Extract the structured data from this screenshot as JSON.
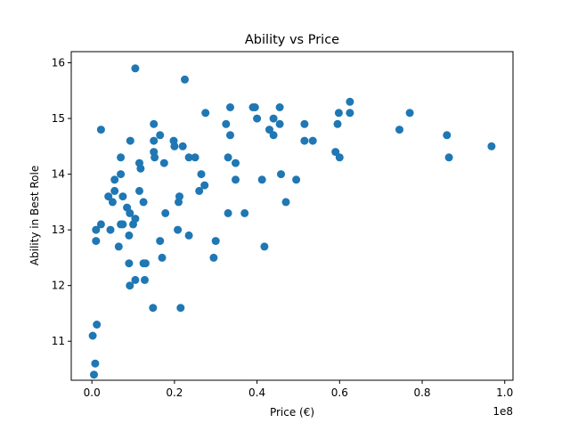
{
  "chart_data": {
    "type": "scatter",
    "title": "Ability vs Price",
    "xlabel": "Price (€)",
    "ylabel": "Ability in Best Role",
    "x_offset_label": "1e8",
    "xlim": [
      -0.05,
      1.02
    ],
    "ylim": [
      10.3,
      16.2
    ],
    "xticks": [
      0.0,
      0.2,
      0.4,
      0.6,
      0.8,
      1.0
    ],
    "xtick_labels": [
      "0.0",
      "0.2",
      "0.4",
      "0.6",
      "0.8",
      "1.0"
    ],
    "yticks": [
      11,
      12,
      13,
      14,
      15,
      16
    ],
    "ytick_labels": [
      "11",
      "12",
      "13",
      "14",
      "15",
      "16"
    ],
    "grid": false,
    "marker_color": "#1f77b4",
    "points": [
      {
        "x": 0.002,
        "y": 11.1
      },
      {
        "x": 0.008,
        "y": 10.6
      },
      {
        "x": 0.005,
        "y": 10.4
      },
      {
        "x": 0.012,
        "y": 11.3
      },
      {
        "x": 0.01,
        "y": 12.8
      },
      {
        "x": 0.01,
        "y": 13.0
      },
      {
        "x": 0.022,
        "y": 13.1
      },
      {
        "x": 0.022,
        "y": 14.8
      },
      {
        "x": 0.04,
        "y": 13.6
      },
      {
        "x": 0.045,
        "y": 13.0
      },
      {
        "x": 0.05,
        "y": 13.5
      },
      {
        "x": 0.055,
        "y": 13.7
      },
      {
        "x": 0.055,
        "y": 13.9
      },
      {
        "x": 0.065,
        "y": 12.7
      },
      {
        "x": 0.07,
        "y": 13.1
      },
      {
        "x": 0.07,
        "y": 14.0
      },
      {
        "x": 0.07,
        "y": 14.3
      },
      {
        "x": 0.075,
        "y": 13.6
      },
      {
        "x": 0.075,
        "y": 13.1
      },
      {
        "x": 0.085,
        "y": 13.4
      },
      {
        "x": 0.09,
        "y": 12.9
      },
      {
        "x": 0.09,
        "y": 12.4
      },
      {
        "x": 0.092,
        "y": 12.0
      },
      {
        "x": 0.092,
        "y": 13.3
      },
      {
        "x": 0.093,
        "y": 14.6
      },
      {
        "x": 0.1,
        "y": 13.1
      },
      {
        "x": 0.105,
        "y": 13.2
      },
      {
        "x": 0.105,
        "y": 12.1
      },
      {
        "x": 0.105,
        "y": 15.9
      },
      {
        "x": 0.115,
        "y": 13.7
      },
      {
        "x": 0.115,
        "y": 14.2
      },
      {
        "x": 0.118,
        "y": 14.1
      },
      {
        "x": 0.125,
        "y": 12.4
      },
      {
        "x": 0.125,
        "y": 13.5
      },
      {
        "x": 0.128,
        "y": 12.1
      },
      {
        "x": 0.13,
        "y": 12.4
      },
      {
        "x": 0.148,
        "y": 11.6
      },
      {
        "x": 0.15,
        "y": 14.4
      },
      {
        "x": 0.15,
        "y": 14.6
      },
      {
        "x": 0.15,
        "y": 14.9
      },
      {
        "x": 0.152,
        "y": 14.3
      },
      {
        "x": 0.165,
        "y": 12.8
      },
      {
        "x": 0.165,
        "y": 14.7
      },
      {
        "x": 0.17,
        "y": 12.5
      },
      {
        "x": 0.175,
        "y": 14.2
      },
      {
        "x": 0.178,
        "y": 13.3
      },
      {
        "x": 0.198,
        "y": 14.6
      },
      {
        "x": 0.2,
        "y": 14.5
      },
      {
        "x": 0.208,
        "y": 13.0
      },
      {
        "x": 0.21,
        "y": 13.5
      },
      {
        "x": 0.212,
        "y": 13.6
      },
      {
        "x": 0.215,
        "y": 11.6
      },
      {
        "x": 0.22,
        "y": 14.5
      },
      {
        "x": 0.225,
        "y": 15.7
      },
      {
        "x": 0.235,
        "y": 12.9
      },
      {
        "x": 0.235,
        "y": 14.3
      },
      {
        "x": 0.25,
        "y": 14.3
      },
      {
        "x": 0.26,
        "y": 13.7
      },
      {
        "x": 0.265,
        "y": 14.0
      },
      {
        "x": 0.273,
        "y": 13.8
      },
      {
        "x": 0.275,
        "y": 15.1
      },
      {
        "x": 0.295,
        "y": 12.5
      },
      {
        "x": 0.3,
        "y": 12.8
      },
      {
        "x": 0.325,
        "y": 14.9
      },
      {
        "x": 0.33,
        "y": 13.3
      },
      {
        "x": 0.33,
        "y": 14.3
      },
      {
        "x": 0.335,
        "y": 14.7
      },
      {
        "x": 0.335,
        "y": 15.2
      },
      {
        "x": 0.348,
        "y": 13.9
      },
      {
        "x": 0.348,
        "y": 14.2
      },
      {
        "x": 0.37,
        "y": 13.3
      },
      {
        "x": 0.39,
        "y": 15.2
      },
      {
        "x": 0.395,
        "y": 15.2
      },
      {
        "x": 0.4,
        "y": 15.0
      },
      {
        "x": 0.412,
        "y": 13.9
      },
      {
        "x": 0.418,
        "y": 12.7
      },
      {
        "x": 0.43,
        "y": 14.8
      },
      {
        "x": 0.44,
        "y": 14.7
      },
      {
        "x": 0.44,
        "y": 15.0
      },
      {
        "x": 0.455,
        "y": 14.9
      },
      {
        "x": 0.455,
        "y": 15.2
      },
      {
        "x": 0.458,
        "y": 14.0
      },
      {
        "x": 0.47,
        "y": 13.5
      },
      {
        "x": 0.495,
        "y": 13.9
      },
      {
        "x": 0.515,
        "y": 14.6
      },
      {
        "x": 0.515,
        "y": 14.9
      },
      {
        "x": 0.535,
        "y": 14.6
      },
      {
        "x": 0.59,
        "y": 14.4
      },
      {
        "x": 0.595,
        "y": 14.9
      },
      {
        "x": 0.598,
        "y": 15.1
      },
      {
        "x": 0.6,
        "y": 14.3
      },
      {
        "x": 0.625,
        "y": 15.1
      },
      {
        "x": 0.625,
        "y": 15.3
      },
      {
        "x": 0.745,
        "y": 14.8
      },
      {
        "x": 0.77,
        "y": 15.1
      },
      {
        "x": 0.86,
        "y": 14.7
      },
      {
        "x": 0.865,
        "y": 14.3
      },
      {
        "x": 0.968,
        "y": 14.5
      }
    ]
  }
}
